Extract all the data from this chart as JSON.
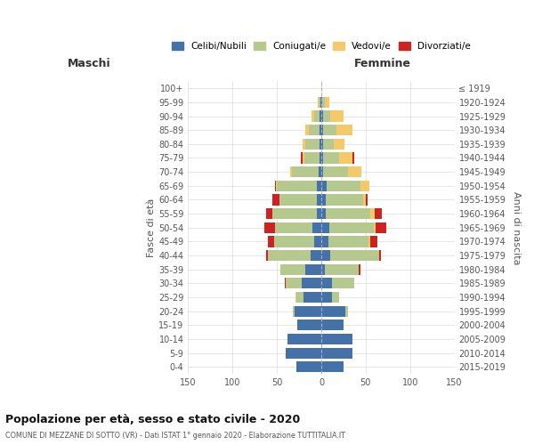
{
  "age_groups": [
    "0-4",
    "5-9",
    "10-14",
    "15-19",
    "20-24",
    "25-29",
    "30-34",
    "35-39",
    "40-44",
    "45-49",
    "50-54",
    "55-59",
    "60-64",
    "65-69",
    "70-74",
    "75-79",
    "80-84",
    "85-89",
    "90-94",
    "95-99",
    "100+"
  ],
  "birth_years": [
    "2015-2019",
    "2010-2014",
    "2005-2009",
    "2000-2004",
    "1995-1999",
    "1990-1994",
    "1985-1989",
    "1980-1984",
    "1975-1979",
    "1970-1974",
    "1965-1969",
    "1960-1964",
    "1955-1959",
    "1950-1954",
    "1945-1949",
    "1940-1944",
    "1935-1939",
    "1930-1934",
    "1925-1929",
    "1920-1924",
    "≤ 1919"
  ],
  "male": {
    "celibi": [
      28,
      40,
      38,
      27,
      30,
      20,
      22,
      18,
      12,
      8,
      10,
      5,
      5,
      5,
      3,
      2,
      2,
      2,
      2,
      1,
      0
    ],
    "coniugati": [
      0,
      0,
      0,
      0,
      2,
      8,
      18,
      28,
      48,
      45,
      42,
      50,
      42,
      45,
      30,
      17,
      16,
      12,
      6,
      2,
      0
    ],
    "vedovi": [
      0,
      0,
      0,
      0,
      0,
      1,
      0,
      0,
      0,
      0,
      0,
      0,
      0,
      1,
      2,
      2,
      3,
      4,
      3,
      1,
      0
    ],
    "divorziati": [
      0,
      0,
      0,
      0,
      0,
      0,
      1,
      0,
      2,
      7,
      12,
      7,
      8,
      1,
      0,
      2,
      0,
      0,
      0,
      0,
      0
    ]
  },
  "female": {
    "nubili": [
      25,
      35,
      35,
      25,
      27,
      12,
      12,
      4,
      10,
      8,
      9,
      5,
      5,
      6,
      2,
      2,
      2,
      2,
      2,
      1,
      0
    ],
    "coniugate": [
      0,
      0,
      0,
      0,
      3,
      8,
      25,
      38,
      55,
      45,
      50,
      50,
      42,
      38,
      28,
      18,
      12,
      15,
      8,
      3,
      0
    ],
    "vedove": [
      0,
      0,
      0,
      0,
      0,
      0,
      0,
      0,
      0,
      2,
      2,
      5,
      3,
      10,
      15,
      15,
      12,
      18,
      15,
      5,
      0
    ],
    "divorziate": [
      0,
      0,
      0,
      0,
      0,
      0,
      0,
      2,
      2,
      8,
      12,
      8,
      2,
      0,
      0,
      2,
      0,
      0,
      0,
      0,
      0
    ]
  },
  "colors": {
    "celibi": "#4472a8",
    "coniugati": "#b5c98e",
    "vedovi": "#f5c96a",
    "divorziati": "#cc2222"
  },
  "xlim": 150,
  "title": "Popolazione per età, sesso e stato civile - 2020",
  "subtitle": "COMUNE DI MEZZANE DI SOTTO (VR) - Dati ISTAT 1° gennaio 2020 - Elaborazione TUTTITALIA.IT",
  "ylabel_left": "Fasce di età",
  "ylabel_right": "Anni di nascita",
  "xlabel_left": "Maschi",
  "xlabel_right": "Femmine",
  "bg_color": "#f9f9f9"
}
